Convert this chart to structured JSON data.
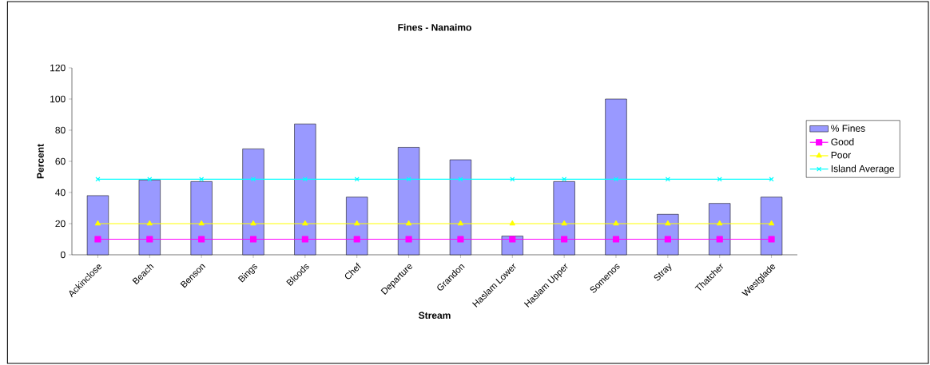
{
  "chart_data": {
    "type": "bar",
    "title": "Fines - Nanaimo",
    "xlabel": "Stream",
    "ylabel": "Percent",
    "categories": [
      "Ackinclose",
      "Beach",
      "Benson",
      "Bings",
      "Bloods",
      "Chef",
      "Departure",
      "Grandon",
      "Haslam Lower",
      "Haslam Upper",
      "Somenos",
      "Stray",
      "Thatcher",
      "Westglade"
    ],
    "series": [
      {
        "name": "% Fines",
        "color": "#9999ff",
        "values": [
          38,
          48,
          47,
          68,
          84,
          37,
          69,
          61,
          12,
          47,
          100,
          26,
          33,
          37
        ]
      },
      {
        "name": "Good",
        "type": "line",
        "marker": "square",
        "color": "#ff00ff",
        "values": [
          10,
          10,
          10,
          10,
          10,
          10,
          10,
          10,
          10,
          10,
          10,
          10,
          10,
          10
        ]
      },
      {
        "name": "Poor",
        "type": "line",
        "marker": "triangle",
        "color": "#ffff00",
        "values": [
          20,
          20,
          20,
          20,
          20,
          20,
          20,
          20,
          20,
          20,
          20,
          20,
          20,
          20
        ]
      },
      {
        "name": "Island Average",
        "type": "line",
        "marker": "cross",
        "color": "#00ffff",
        "values": [
          48.5,
          48.5,
          48.5,
          48.5,
          48.5,
          48.5,
          48.5,
          48.5,
          48.5,
          48.5,
          48.5,
          48.5,
          48.5,
          48.5
        ]
      }
    ],
    "ylim": [
      0,
      120
    ],
    "yticks": [
      0,
      20,
      40,
      60,
      80,
      100,
      120
    ],
    "legend": "right",
    "grid": false
  }
}
